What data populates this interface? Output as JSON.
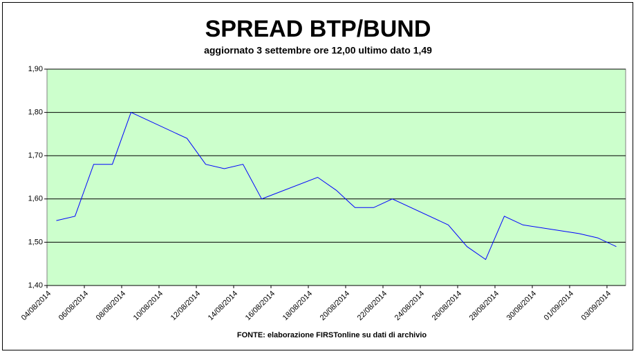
{
  "chart_data": {
    "type": "line",
    "title": "SPREAD BTP/BUND",
    "subtitle": "aggiornato 3 settembre ore 12,00 ultimo dato 1,49",
    "source": "FONTE: elaborazione FIRSTonline su dati di archivio",
    "x": [
      "04/08/2014",
      "05/08/2014",
      "06/08/2014",
      "07/08/2014",
      "08/08/2014",
      "11/08/2014",
      "12/08/2014",
      "13/08/2014",
      "14/08/2014",
      "15/08/2014",
      "18/08/2014",
      "19/08/2014",
      "20/08/2014",
      "21/08/2014",
      "22/08/2014",
      "25/08/2014",
      "26/08/2014",
      "27/08/2014",
      "28/08/2014",
      "29/08/2014",
      "01/09/2014",
      "02/09/2014",
      "03/09/2014"
    ],
    "values": [
      1.55,
      1.56,
      1.68,
      1.68,
      1.8,
      1.74,
      1.68,
      1.67,
      1.68,
      1.6,
      1.65,
      1.62,
      1.58,
      1.58,
      1.6,
      1.54,
      1.49,
      1.46,
      1.56,
      1.54,
      1.52,
      1.51,
      1.49
    ],
    "color": "#0000ff",
    "xlim": [
      "04/08/2014",
      "03/09/2014"
    ],
    "xticks": [
      "04/08/2014",
      "06/08/2014",
      "08/08/2014",
      "10/08/2014",
      "12/08/2014",
      "14/08/2014",
      "16/08/2014",
      "18/08/2014",
      "20/08/2014",
      "22/08/2014",
      "24/08/2014",
      "26/08/2014",
      "28/08/2014",
      "30/08/2014",
      "01/09/2014",
      "03/09/2014"
    ],
    "ylim": [
      1.4,
      1.9
    ],
    "yticks": [
      {
        "value": 1.4,
        "label": "1,40"
      },
      {
        "value": 1.5,
        "label": "1,50"
      },
      {
        "value": 1.6,
        "label": "1,60"
      },
      {
        "value": 1.7,
        "label": "1,70"
      },
      {
        "value": 1.8,
        "label": "1,80"
      },
      {
        "value": 1.9,
        "label": "1,90"
      }
    ],
    "grid": true
  }
}
